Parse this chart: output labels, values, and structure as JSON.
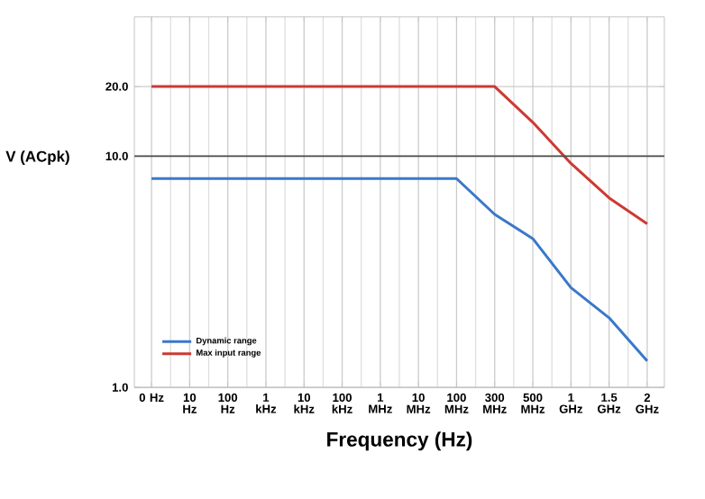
{
  "chart_data": {
    "type": "line",
    "xlabel": "Frequency (Hz)",
    "ylabel": "V (ACpk)",
    "categories": [
      "0 Hz",
      "10 Hz",
      "100 Hz",
      "1 kHz",
      "10 kHz",
      "100 kHz",
      "1 MHz",
      "10 MHz",
      "100 MHz",
      "300 MHz",
      "500 MHz",
      "1 GHz",
      "1.5 GHz",
      "2 GHz"
    ],
    "series": [
      {
        "name": "Dynamic range",
        "color": "#3a78c9",
        "values": [
          8,
          8,
          8,
          8,
          8,
          8,
          8,
          8,
          8,
          5.6,
          4.4,
          2.7,
          2.0,
          1.3
        ]
      },
      {
        "name": "Max input range",
        "color": "#cc3a33",
        "values": [
          20,
          20,
          20,
          20,
          20,
          20,
          20,
          20,
          20,
          20,
          14,
          9.3,
          6.6,
          5.1
        ]
      }
    ],
    "log": "y",
    "ylim": [
      1,
      40
    ],
    "yticks": [
      {
        "value": 1,
        "label": "1.0"
      },
      {
        "value": 10,
        "label": "10.0"
      },
      {
        "value": 20,
        "label": "20.0"
      }
    ],
    "ref_lines": [
      {
        "axis": "y",
        "value": 10,
        "color": "#4c4c4c"
      }
    ],
    "grid": true,
    "legend": "bottom left",
    "marker": "none",
    "line_style": "solid"
  }
}
